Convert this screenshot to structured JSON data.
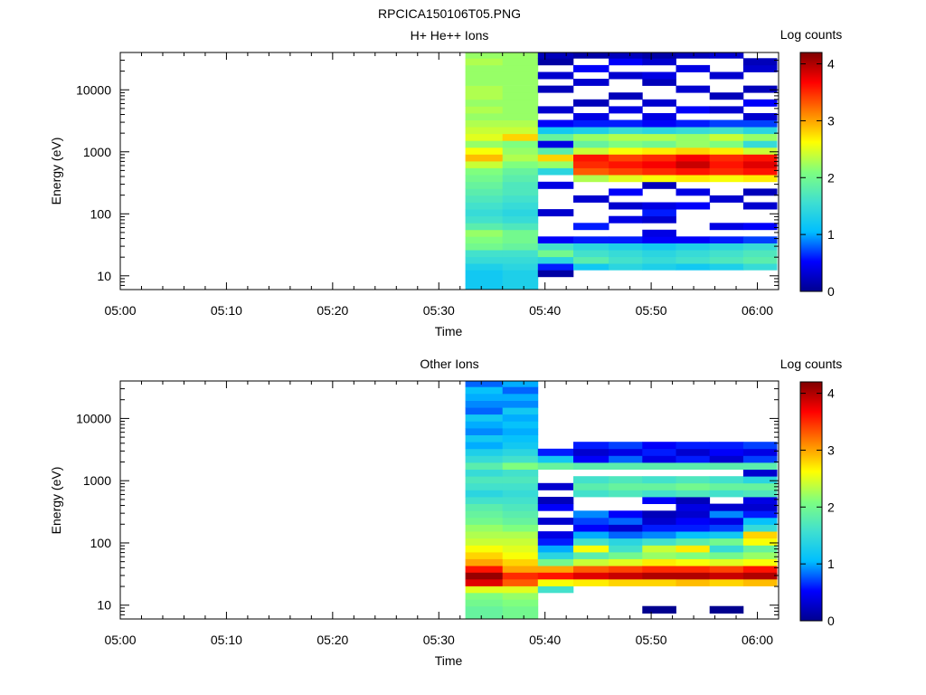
{
  "figure_title": "RPCICA150106T05.PNG",
  "colorscale": {
    "stops": [
      "#00008f",
      "#0000ff",
      "#00bfff",
      "#40e0d0",
      "#7fff7f",
      "#ffff00",
      "#ff7f00",
      "#ff0000",
      "#7f0000"
    ],
    "range": [
      0,
      4.2
    ],
    "ticks": [
      "0",
      "1",
      "2",
      "3",
      "4"
    ],
    "label": "Log counts"
  },
  "chart_data": [
    {
      "type": "heatmap",
      "title": "H+ He++ Ions",
      "xlabel": "Time",
      "ylabel": "Energy (eV)",
      "x_ticks": [
        "05:00",
        "05:10",
        "05:20",
        "05:30",
        "05:40",
        "05:50",
        "06:00"
      ],
      "y_ticks": [
        "10",
        "100",
        "1000",
        "10000"
      ],
      "y_scale": "log",
      "x_range": [
        "05:00",
        "06:02"
      ],
      "y_range": [
        6,
        40000
      ],
      "energy_bins": [
        6.5,
        8.5,
        11,
        14,
        18,
        23,
        30,
        38,
        49,
        63,
        81,
        105,
        135,
        175,
        225,
        290,
        375,
        485,
        625,
        805,
        1040,
        1340,
        1730,
        2230,
        2880,
        3710,
        4790,
        6180,
        7970,
        10300,
        13300,
        17100,
        22100,
        28500,
        36700
      ],
      "time_bins": [
        {
          "start": "05:32:30",
          "end": "05:36:00",
          "values": [
            1.2,
            1.2,
            1.2,
            1.3,
            1.5,
            1.6,
            2.0,
            2.1,
            2.2,
            1.8,
            1.6,
            1.5,
            1.6,
            1.7,
            1.8,
            1.9,
            2.0,
            2.1,
            2.4,
            2.9,
            2.6,
            2.2,
            2.5,
            2.4,
            2.3,
            2.2,
            2.3,
            2.2,
            2.3,
            2.3,
            2.2,
            2.2,
            2.2,
            2.3,
            2.2
          ]
        },
        {
          "start": "05:36:00",
          "end": "05:39:20",
          "values": [
            1.3,
            1.3,
            1.3,
            1.4,
            1.5,
            1.6,
            1.9,
            2.0,
            2.0,
            1.7,
            1.5,
            1.4,
            1.5,
            1.6,
            1.7,
            1.7,
            1.8,
            1.9,
            2.1,
            2.3,
            2.2,
            2.1,
            2.8,
            2.4,
            2.3,
            2.2,
            2.2,
            2.2,
            2.2,
            2.2,
            2.2,
            2.2,
            2.2,
            2.2,
            2.2
          ]
        },
        {
          "start": "05:39:20",
          "end": "05:42:40",
          "values": [
            null,
            null,
            0.1,
            0.6,
            1.4,
            2.0,
            1.6,
            0.5,
            null,
            null,
            null,
            0.3,
            null,
            null,
            null,
            0.4,
            null,
            1.4,
            2.2,
            2.8,
            1.8,
            0.4,
            1.9,
            1.2,
            0.5,
            null,
            0.3,
            null,
            null,
            0.2,
            null,
            0.3,
            null,
            0.1,
            0.2
          ]
        },
        {
          "start": "05:42:40",
          "end": "05:46:00",
          "values": [
            null,
            null,
            null,
            1.2,
            1.8,
            1.6,
            1.4,
            0.6,
            null,
            0.6,
            null,
            null,
            null,
            0.3,
            null,
            null,
            2.3,
            3.3,
            3.5,
            3.6,
            2.4,
            1.9,
            2.2,
            1.3,
            0.6,
            0.4,
            null,
            0.2,
            null,
            null,
            0.3,
            null,
            0.5,
            null,
            0.1
          ]
        },
        {
          "start": "05:46:00",
          "end": "05:49:10",
          "values": [
            null,
            null,
            null,
            1.4,
            1.6,
            1.5,
            1.3,
            0.6,
            null,
            null,
            0.4,
            null,
            0.3,
            null,
            0.5,
            null,
            2.5,
            3.4,
            3.6,
            3.4,
            2.6,
            2.1,
            2.3,
            1.5,
            0.6,
            null,
            0.4,
            null,
            0.2,
            null,
            null,
            0.3,
            null,
            0.5,
            0.2
          ]
        },
        {
          "start": "05:49:10",
          "end": "05:52:20",
          "values": [
            null,
            null,
            null,
            1.3,
            1.5,
            1.4,
            1.2,
            0.5,
            0.4,
            null,
            0.3,
            0.6,
            0.4,
            null,
            null,
            0.2,
            2.6,
            3.5,
            3.7,
            3.5,
            2.7,
            2.0,
            2.3,
            1.4,
            0.5,
            0.4,
            null,
            0.3,
            null,
            null,
            0.2,
            0.4,
            null,
            0.3,
            0.1
          ]
        },
        {
          "start": "05:52:20",
          "end": "05:55:30",
          "values": [
            null,
            null,
            null,
            1.2,
            1.6,
            1.5,
            1.3,
            0.5,
            null,
            null,
            null,
            null,
            0.5,
            null,
            0.4,
            null,
            2.7,
            3.6,
            3.9,
            3.7,
            2.8,
            2.2,
            2.2,
            1.5,
            0.6,
            null,
            0.5,
            null,
            null,
            0.3,
            null,
            null,
            0.4,
            null,
            0.2
          ]
        },
        {
          "start": "05:55:30",
          "end": "05:58:40",
          "values": [
            null,
            null,
            null,
            1.3,
            1.7,
            1.6,
            1.4,
            0.6,
            null,
            0.4,
            null,
            null,
            null,
            0.3,
            null,
            null,
            2.6,
            3.5,
            3.6,
            3.5,
            2.7,
            2.1,
            2.4,
            1.6,
            0.7,
            null,
            0.3,
            null,
            0.2,
            null,
            null,
            0.3,
            null,
            null,
            0.3
          ]
        },
        {
          "start": "05:58:40",
          "end": "06:01:50",
          "values": [
            null,
            null,
            null,
            1.5,
            1.8,
            1.7,
            1.5,
            0.7,
            null,
            0.5,
            null,
            null,
            0.3,
            null,
            0.2,
            null,
            2.7,
            3.6,
            3.8,
            3.6,
            2.4,
            1.5,
            2.2,
            1.4,
            0.7,
            0.3,
            null,
            0.5,
            null,
            0.2,
            null,
            null,
            0.3,
            0.2,
            null
          ]
        }
      ]
    },
    {
      "type": "heatmap",
      "title": "Other Ions",
      "xlabel": "Time",
      "ylabel": "Energy (eV)",
      "x_ticks": [
        "05:00",
        "05:10",
        "05:20",
        "05:30",
        "05:40",
        "05:50",
        "06:00"
      ],
      "y_ticks": [
        "10",
        "100",
        "1000",
        "10000"
      ],
      "y_scale": "log",
      "x_range": [
        "05:00",
        "06:02"
      ],
      "y_range": [
        6,
        40000
      ],
      "energy_bins": [
        6.5,
        8.5,
        11,
        14,
        18,
        23,
        30,
        38,
        49,
        63,
        81,
        105,
        135,
        175,
        225,
        290,
        375,
        485,
        625,
        805,
        1040,
        1340,
        1730,
        2230,
        2880,
        3710,
        4790,
        6180,
        7970,
        10300,
        13300,
        17100,
        22100,
        28500,
        36700
      ],
      "time_bins": [
        {
          "start": "05:32:30",
          "end": "05:36:00",
          "values": [
            1.9,
            1.9,
            2.0,
            2.1,
            2.5,
            3.8,
            4.1,
            3.6,
            3.0,
            2.8,
            2.6,
            2.4,
            2.3,
            2.2,
            2.0,
            1.9,
            1.8,
            1.6,
            1.4,
            1.6,
            1.7,
            1.5,
            1.8,
            1.5,
            1.3,
            1.0,
            1.2,
            0.9,
            1.0,
            1.2,
            0.8,
            0.9,
            1.0,
            1.1,
            0.8
          ]
        },
        {
          "start": "05:36:00",
          "end": "05:39:20",
          "values": [
            2.0,
            2.0,
            2.1,
            2.2,
            2.5,
            3.3,
            3.5,
            3.0,
            2.8,
            2.6,
            2.5,
            2.4,
            2.3,
            2.1,
            1.9,
            1.8,
            1.7,
            1.6,
            1.5,
            1.6,
            1.7,
            1.6,
            2.1,
            1.6,
            1.4,
            1.2,
            1.1,
            1.0,
            1.1,
            1.0,
            1.2,
            0.9,
            1.0,
            0.8,
            1.0
          ]
        },
        {
          "start": "05:39:20",
          "end": "05:42:40",
          "values": [
            null,
            null,
            null,
            null,
            1.6,
            2.6,
            3.6,
            3.0,
            2.0,
            1.4,
            1.0,
            0.6,
            0.4,
            null,
            0.3,
            null,
            0.5,
            0.2,
            null,
            0.3,
            null,
            null,
            1.9,
            1.2,
            0.6,
            null,
            null,
            null,
            null,
            null,
            null,
            null,
            null,
            null,
            null
          ]
        },
        {
          "start": "05:42:40",
          "end": "05:46:00",
          "values": [
            null,
            null,
            null,
            null,
            null,
            2.7,
            3.8,
            3.3,
            2.4,
            1.8,
            2.6,
            1.6,
            1.0,
            0.5,
            0.7,
            0.9,
            null,
            null,
            1.6,
            1.8,
            1.6,
            null,
            1.8,
            0.5,
            0.3,
            0.6,
            null,
            null,
            null,
            null,
            null,
            null,
            null,
            null,
            null
          ]
        },
        {
          "start": "05:46:00",
          "end": "05:49:10",
          "values": [
            null,
            null,
            null,
            null,
            null,
            2.8,
            3.9,
            3.4,
            2.5,
            2.0,
            1.6,
            1.4,
            0.8,
            0.3,
            0.8,
            0.5,
            null,
            null,
            1.7,
            1.9,
            1.7,
            null,
            1.8,
            0.8,
            0.4,
            0.7,
            null,
            null,
            null,
            null,
            null,
            null,
            null,
            null,
            null
          ]
        },
        {
          "start": "05:49:10",
          "end": "05:52:20",
          "values": [
            null,
            0.0,
            null,
            null,
            null,
            2.8,
            4.0,
            3.5,
            2.7,
            2.2,
            2.4,
            1.6,
            0.9,
            0.6,
            0.3,
            0.2,
            null,
            0.5,
            1.6,
            1.9,
            1.6,
            null,
            1.8,
            0.4,
            0.6,
            0.5,
            null,
            null,
            null,
            null,
            null,
            null,
            null,
            null,
            null
          ]
        },
        {
          "start": "05:52:20",
          "end": "05:55:30",
          "values": [
            null,
            null,
            null,
            null,
            null,
            2.9,
            4.0,
            3.5,
            2.6,
            2.1,
            2.7,
            1.8,
            1.1,
            0.6,
            0.5,
            0.3,
            0.4,
            0.2,
            1.7,
            2.0,
            1.7,
            null,
            1.8,
            0.6,
            0.3,
            0.6,
            null,
            null,
            null,
            null,
            null,
            null,
            null,
            null,
            null
          ]
        },
        {
          "start": "05:55:30",
          "end": "05:58:40",
          "values": [
            null,
            0.0,
            null,
            null,
            null,
            2.8,
            3.9,
            3.4,
            2.5,
            2.0,
            1.5,
            2.0,
            1.2,
            0.7,
            0.4,
            0.9,
            0.3,
            null,
            1.6,
            1.9,
            1.6,
            null,
            1.8,
            0.3,
            0.5,
            0.6,
            null,
            null,
            null,
            null,
            null,
            null,
            null,
            null,
            null
          ]
        },
        {
          "start": "05:58:40",
          "end": "06:01:50",
          "values": [
            null,
            null,
            null,
            null,
            null,
            2.9,
            4.0,
            3.6,
            2.6,
            2.2,
            1.9,
            2.6,
            2.8,
            1.5,
            1.1,
            0.6,
            0.3,
            0.4,
            1.7,
            1.9,
            1.4,
            0.3,
            1.8,
            0.7,
            0.4,
            0.7,
            null,
            null,
            null,
            null,
            null,
            null,
            null,
            null,
            null
          ]
        }
      ]
    }
  ]
}
